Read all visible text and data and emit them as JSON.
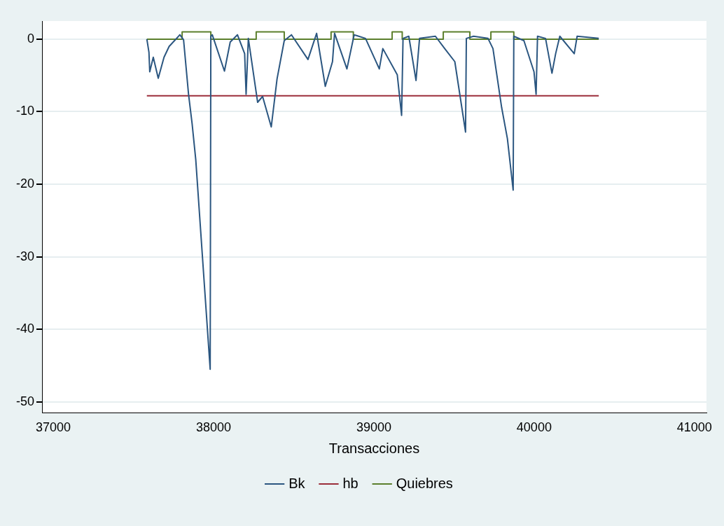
{
  "chart_data": {
    "type": "line",
    "xlabel": "Transacciones",
    "xlim": [
      36930,
      41075
    ],
    "xticks": [
      37000,
      38000,
      39000,
      40000,
      41000
    ],
    "ylim": [
      -51.5,
      2.5
    ],
    "yticks": [
      -50,
      -40,
      -30,
      -20,
      -10,
      0
    ],
    "grid": "y",
    "legend": "bottom",
    "marker": "none",
    "line_style": "solid",
    "series": [
      {
        "name": "Bk",
        "color": "#2b5680",
        "x": [
          37584,
          37597,
          37602,
          37624,
          37655,
          37691,
          37723,
          37790,
          37813,
          37844,
          37866,
          37889,
          37979,
          37983,
          37992,
          38068,
          38104,
          38149,
          38194,
          38203,
          38217,
          38275,
          38306,
          38360,
          38396,
          38441,
          38486,
          38589,
          38643,
          38697,
          38742,
          38755,
          38832,
          38877,
          38948,
          39034,
          39056,
          39146,
          39173,
          39182,
          39218,
          39263,
          39285,
          39384,
          39442,
          39505,
          39572,
          39577,
          39622,
          39712,
          39743,
          39797,
          39833,
          39869,
          39873,
          39936,
          39999,
          40012,
          40021,
          40071,
          40111,
          40134,
          40160,
          40250,
          40268,
          40403
        ],
        "values": [
          0,
          -1.8,
          -4.5,
          -2.5,
          -5.4,
          -2.5,
          -1,
          0.6,
          -0.1,
          -7.6,
          -11.6,
          -16.6,
          -45.5,
          0.4,
          0.6,
          -4.4,
          -0.4,
          0.6,
          -2,
          -7.6,
          0.1,
          -8.7,
          -7.9,
          -12.1,
          -5.5,
          -0.2,
          0.6,
          -2.8,
          0.8,
          -6.5,
          -3.1,
          0.8,
          -4.1,
          0.6,
          0.1,
          -4.1,
          -1.3,
          -4.9,
          -10.5,
          0.1,
          0.4,
          -5.7,
          0.1,
          0.4,
          -1.3,
          -3.1,
          -12.8,
          0.1,
          0.4,
          0.1,
          -1.3,
          -9.4,
          -13.7,
          -20.8,
          0.4,
          -0.2,
          -4.5,
          -7.6,
          0.4,
          0.1,
          -4.7,
          -2,
          0.4,
          -2,
          0.4,
          0.1
        ]
      },
      {
        "name": "hb",
        "color": "#9b2d3a",
        "x": [
          37584,
          40403
        ],
        "values": [
          -7.8,
          -7.8
        ]
      },
      {
        "name": "Quiebres",
        "color": "#5b7f2c",
        "x": [
          37584,
          37804,
          37804,
          37983,
          37983,
          38266,
          38266,
          38441,
          38441,
          38733,
          38733,
          38872,
          38872,
          39114,
          39114,
          39177,
          39177,
          39433,
          39433,
          39599,
          39599,
          39730,
          39730,
          39873,
          39873,
          40403
        ],
        "values": [
          0,
          0,
          1,
          1,
          0,
          0,
          1,
          1,
          0,
          0,
          1,
          1,
          0,
          0,
          1,
          1,
          0,
          0,
          1,
          1,
          0,
          0,
          1,
          1,
          0,
          0
        ]
      }
    ]
  }
}
